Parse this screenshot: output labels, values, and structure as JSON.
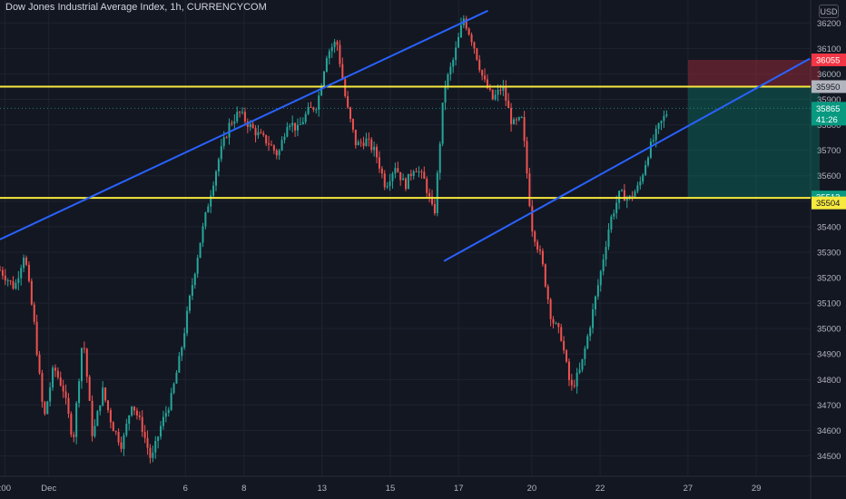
{
  "header": {
    "title": "Dow Jones Industrial Average Index, 1h, CURRENCYCOM",
    "currency": "USD"
  },
  "colors": {
    "background": "#131722",
    "grid": "#1f2330",
    "up": "#26a69a",
    "down": "#ef5350",
    "trendline": "#2962ff",
    "hline": "#f7e93e",
    "stop_zone": "rgba(242,54,69,0.30)",
    "target_zone": "rgba(8,153,129,0.30)"
  },
  "chart_data": {
    "type": "candlestick",
    "title": "Dow Jones Industrial Average Index, 1h, CURRENCYCOM",
    "ylim": [
      34420,
      36290
    ],
    "y_ticks": [
      34500,
      34600,
      34700,
      34800,
      34900,
      35000,
      35100,
      35200,
      35300,
      35400,
      35500,
      35600,
      35700,
      35800,
      35900,
      36000,
      36100,
      36200
    ],
    "x_labels": [
      {
        "label": ":00",
        "pos": 0.5
      },
      {
        "label": "Dec",
        "pos": 5
      },
      {
        "label": "6",
        "pos": 19
      },
      {
        "label": "8",
        "pos": 25
      },
      {
        "label": "13",
        "pos": 33
      },
      {
        "label": "15",
        "pos": 40
      },
      {
        "label": "17",
        "pos": 47
      },
      {
        "label": "20",
        "pos": 54.5
      },
      {
        "label": "22",
        "pos": 61.5
      },
      {
        "label": "27",
        "pos": 70.5
      },
      {
        "label": "29",
        "pos": 77.5
      }
    ],
    "price_path": [
      [
        0,
        35230
      ],
      [
        1.5,
        35160
      ],
      [
        2.5,
        35300
      ],
      [
        3.5,
        35020
      ],
      [
        4.5,
        34640
      ],
      [
        5.5,
        34850
      ],
      [
        6.5,
        34760
      ],
      [
        7.5,
        34560
      ],
      [
        8.5,
        34980
      ],
      [
        9.5,
        34570
      ],
      [
        10.5,
        34760
      ],
      [
        11.5,
        34620
      ],
      [
        12.5,
        34540
      ],
      [
        13.5,
        34710
      ],
      [
        14.5,
        34620
      ],
      [
        15.5,
        34480
      ],
      [
        16.5,
        34620
      ],
      [
        17.5,
        34720
      ],
      [
        18.5,
        34900
      ],
      [
        19.5,
        35130
      ],
      [
        20.5,
        35340
      ],
      [
        21.5,
        35520
      ],
      [
        22.5,
        35680
      ],
      [
        23.5,
        35800
      ],
      [
        24.5,
        35850
      ],
      [
        25.5,
        35800
      ],
      [
        26.5,
        35760
      ],
      [
        27.5,
        35730
      ],
      [
        28.5,
        35680
      ],
      [
        29.5,
        35820
      ],
      [
        30.5,
        35780
      ],
      [
        31.5,
        35850
      ],
      [
        32.5,
        35880
      ],
      [
        33.5,
        36080
      ],
      [
        34.5,
        36130
      ],
      [
        35.5,
        35880
      ],
      [
        36.5,
        35720
      ],
      [
        37.5,
        35740
      ],
      [
        38.5,
        35690
      ],
      [
        39.5,
        35560
      ],
      [
        40.5,
        35640
      ],
      [
        41.5,
        35560
      ],
      [
        42.5,
        35640
      ],
      [
        43.5,
        35580
      ],
      [
        44.5,
        35440
      ],
      [
        45.5,
        35940
      ],
      [
        46.5,
        36060
      ],
      [
        47.5,
        36220
      ],
      [
        48.5,
        36120
      ],
      [
        49.5,
        35980
      ],
      [
        50.5,
        35900
      ],
      [
        51.5,
        35950
      ],
      [
        52.5,
        35800
      ],
      [
        53.5,
        35820
      ],
      [
        54.5,
        35400
      ],
      [
        55.5,
        35270
      ],
      [
        56.5,
        35040
      ],
      [
        57.5,
        34970
      ],
      [
        58.5,
        34760
      ],
      [
        59.5,
        34840
      ],
      [
        60.5,
        35020
      ],
      [
        61.5,
        35210
      ],
      [
        62.5,
        35420
      ],
      [
        63.5,
        35530
      ],
      [
        64.5,
        35510
      ],
      [
        65.5,
        35560
      ],
      [
        66.5,
        35700
      ],
      [
        67.5,
        35790
      ],
      [
        68.5,
        35860
      ]
    ],
    "annotations": {
      "h_lines": [
        35950,
        35513
      ],
      "trendlines": [
        {
          "x1": 0,
          "y1": 35350,
          "x2": 50,
          "y2": 36248
        },
        {
          "x1": 45.5,
          "y1": 35265,
          "x2": 83,
          "y2": 36060
        }
      ],
      "position": {
        "x_start": 70.5,
        "x_end": 84,
        "stop": 36055,
        "entry": 35950,
        "target": 35513
      },
      "price_tags": [
        {
          "text": "36055",
          "value": 36055,
          "bg": "#f23645",
          "fg": "#ffffff"
        },
        {
          "text": "35950",
          "value": 35950,
          "bg": "#b2b5be",
          "fg": "#131722"
        },
        {
          "text": "35865",
          "value": 35865,
          "bg": "#089981",
          "fg": "#ffffff",
          "sub": "41:26"
        },
        {
          "text": "35513",
          "value": 35513,
          "bg": "#089981",
          "fg": "#ffffff"
        },
        {
          "text": "35504",
          "value": 35504,
          "bg": "#f7e93e",
          "fg": "#131722"
        }
      ]
    }
  }
}
